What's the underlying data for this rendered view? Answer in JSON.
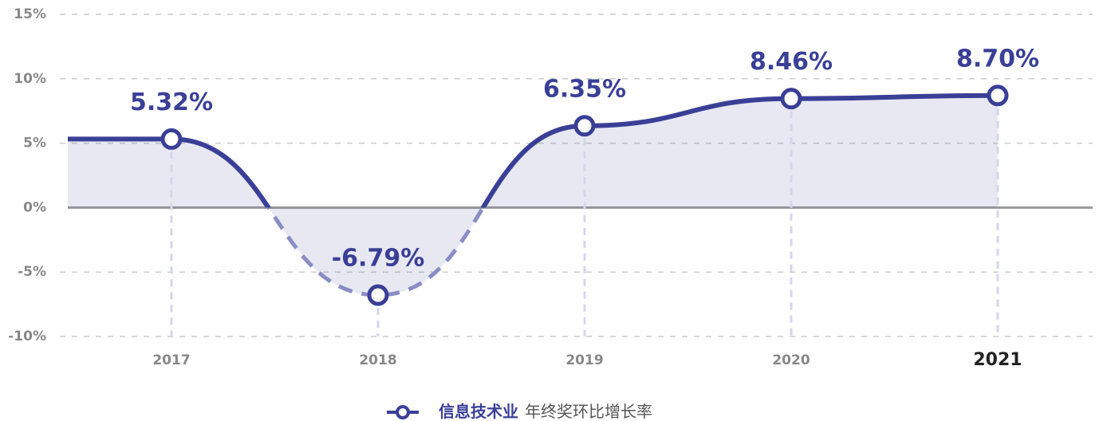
{
  "chart_data": {
    "type": "line",
    "categories": [
      "2017",
      "2018",
      "2019",
      "2020",
      "2021"
    ],
    "series": [
      {
        "name": "信息技术业",
        "color": "#3a3f96",
        "values": [
          5.32,
          -6.79,
          6.35,
          8.46,
          8.7
        ],
        "value_labels": [
          "5.32%",
          "-6.79%",
          "6.35%",
          "8.46%",
          "8.70%"
        ]
      }
    ],
    "legend_title": "年终奖环比增长率",
    "ylim": [
      -10,
      15
    ],
    "yticks": [
      {
        "value": -10,
        "label": "-10%"
      },
      {
        "value": -5,
        "label": "-5%"
      },
      {
        "value": 0,
        "label": "0%"
      },
      {
        "value": 5,
        "label": "5%"
      },
      {
        "value": 10,
        "label": "10%"
      },
      {
        "value": 15,
        "label": "15%"
      }
    ],
    "grid": true,
    "legend": "bottom",
    "highlight_category": 4
  }
}
